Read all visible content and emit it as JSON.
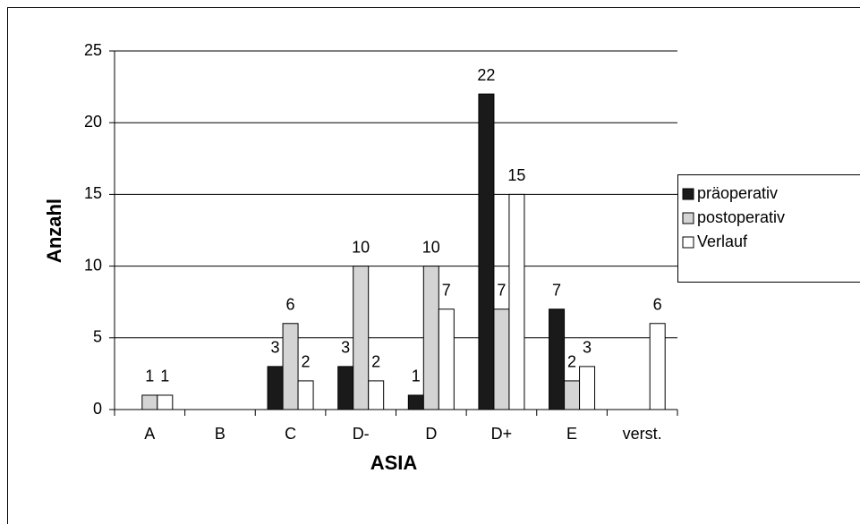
{
  "chart_data": {
    "type": "bar",
    "x_label": "ASIA",
    "y_label": "Anzahl",
    "categories": [
      "A",
      "B",
      "C",
      "D-",
      "D",
      "D+",
      "E",
      "verst."
    ],
    "series": [
      {
        "name": "präoperativ",
        "color": "#1a1a1a",
        "values": [
          null,
          null,
          3,
          3,
          1,
          22,
          7,
          null
        ]
      },
      {
        "name": "postoperativ",
        "color": "#d4d4d4",
        "values": [
          1,
          null,
          6,
          10,
          10,
          7,
          2,
          null
        ]
      },
      {
        "name": "Verlauf",
        "color": "#ffffff",
        "values": [
          1,
          null,
          2,
          2,
          7,
          15,
          3,
          6
        ]
      }
    ],
    "ylim": [
      0,
      25
    ],
    "yticks": [
      0,
      5,
      10,
      15,
      20,
      25
    ],
    "grid": true,
    "legend": "right"
  }
}
